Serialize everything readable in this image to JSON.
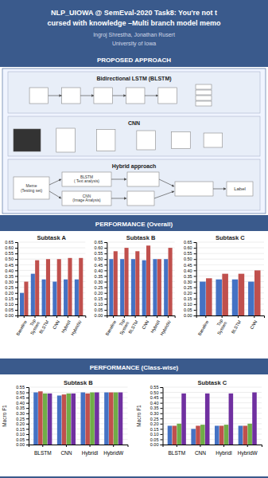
{
  "title": [
    "NLP_UIOWA @ SemEval-2020 Task8: You're not t",
    "cursed with knowledge –Multi branch model memo"
  ],
  "subtitle": [
    "Ingroj Shrestha, Jonathan Rusert",
    "University of Iowa"
  ],
  "annotations": [
    "PROPOSED APPROACH",
    "Bidirectional LSTM (BLSTM)",
    "CNN",
    "Hybrid approach",
    "Meme\n(Testing set)",
    "BLSTM\n( Text analysis)",
    "CNN\n(Image Analysis)",
    "Label",
    "PERFORMANCE (Overall)",
    "PERFORMANCE (Class-wise)"
  ],
  "chart_data": [
    {
      "type": "bar",
      "title": "Subtask A",
      "categories": [
        "Baseline",
        "Top\nSystem",
        "BLSTM",
        "CNN",
        "HybridI",
        "HybridW"
      ],
      "series": [
        {
          "color": "#4472c4",
          "values": [
            0.2,
            0.37,
            0.32,
            0.3,
            0.32,
            0.32
          ]
        },
        {
          "color": "#c0504d",
          "values": [
            0.3,
            0.49,
            0.5,
            0.5,
            0.51,
            0.51
          ]
        }
      ],
      "ylim": [
        0,
        0.65
      ],
      "yticks": [
        {
          "value": 0,
          "label": "0.00"
        },
        0.05,
        {
          "value": 0.1,
          "label": "0.10"
        },
        0.15,
        {
          "value": 0.2,
          "label": "0.20"
        },
        0.25,
        {
          "value": 0.3,
          "label": "0.30"
        },
        0.35,
        {
          "value": 0.4,
          "label": "0.40"
        },
        0.45,
        {
          "value": 0.5,
          "label": "0.50"
        },
        0.55,
        {
          "value": 0.6,
          "label": "0.60"
        },
        0.65
      ],
      "grid": true
    },
    {
      "type": "bar",
      "title": "Subtask B",
      "categories": [
        "Baseline",
        "Top\nSystem",
        "BLSTM",
        "CNN",
        "HybridI",
        "HybridW"
      ],
      "series": [
        {
          "color": "#4472c4",
          "values": [
            0.5,
            0.5,
            0.5,
            0.49,
            0.5,
            0.5
          ]
        },
        {
          "color": "#c0504d",
          "values": [
            0.57,
            0.6,
            0.57,
            0.62,
            0.5,
            0.6
          ]
        }
      ],
      "ylim": [
        0,
        0.65
      ],
      "yticks": [
        {
          "value": 0,
          "label": "0.00"
        },
        0.05,
        {
          "value": 0.1,
          "label": "0.10"
        },
        0.15,
        {
          "value": 0.2,
          "label": "0.20"
        },
        0.25,
        {
          "value": 0.3,
          "label": "0.30"
        },
        0.35,
        {
          "value": 0.4,
          "label": "0.40"
        },
        0.45,
        {
          "value": 0.5,
          "label": "0.50"
        },
        0.55,
        {
          "value": 0.6,
          "label": "0.60"
        },
        0.65
      ],
      "grid": true
    },
    {
      "type": "bar",
      "title": "Subtask C",
      "categories": [
        "Baseline",
        "Top\nSystem",
        "BLSTM",
        "CNN"
      ],
      "series": [
        {
          "color": "#4472c4",
          "values": [
            0.3,
            0.32,
            0.32,
            0.3
          ]
        },
        {
          "color": "#c0504d",
          "values": [
            0.33,
            0.37,
            0.37,
            0.4
          ]
        }
      ],
      "ylim": [
        0,
        0.65
      ],
      "yticks": [
        {
          "value": 0,
          "label": "0.00"
        },
        0.05,
        {
          "value": 0.1,
          "label": "0.10"
        },
        0.15,
        {
          "value": 0.2,
          "label": "0.20"
        },
        0.25,
        {
          "value": 0.3,
          "label": "0.30"
        },
        0.35,
        {
          "value": 0.4,
          "label": "0.40"
        },
        0.45,
        {
          "value": 0.5,
          "label": "0.50"
        },
        0.55,
        {
          "value": 0.6,
          "label": "0.60"
        },
        0.65
      ],
      "grid": true
    },
    {
      "type": "bar",
      "title": "Subtask B",
      "y_label": "Macro F1",
      "categories": [
        "BLSTM",
        "CNN",
        "HybridI",
        "HybridW"
      ],
      "series": [
        {
          "color": "#4472c4",
          "values": [
            0.5,
            0.47,
            0.5,
            0.5
          ]
        },
        {
          "color": "#c0504d",
          "values": [
            0.51,
            0.48,
            0.49,
            0.5
          ]
        },
        {
          "color": "#70ad47",
          "values": [
            0.49,
            0.49,
            0.5,
            0.5
          ]
        },
        {
          "color": "#7030a0",
          "values": [
            0.49,
            0.49,
            0.5,
            0.5
          ]
        }
      ],
      "ylim": [
        0,
        0.55
      ],
      "yticks": [
        {
          "value": 0,
          "label": "0.00"
        },
        0.05,
        {
          "value": 0.1,
          "label": "0.10"
        },
        0.15,
        {
          "value": 0.2,
          "label": "0.20"
        },
        0.25,
        {
          "value": 0.3,
          "label": "0.30"
        },
        0.35,
        {
          "value": 0.4,
          "label": "0.40"
        },
        0.45,
        {
          "value": 0.5,
          "label": "0.50"
        },
        0.55
      ],
      "grid": true
    },
    {
      "type": "bar",
      "title": "Subtask C",
      "y_label": "Macro F1",
      "categories": [
        "BLSTM",
        "CNN",
        "HybridI",
        "HybridW"
      ],
      "series": [
        {
          "color": "#4472c4",
          "values": [
            0.18,
            0.15,
            0.18,
            0.18
          ]
        },
        {
          "color": "#c0504d",
          "values": [
            0.18,
            0.18,
            0.18,
            0.18
          ]
        },
        {
          "color": "#70ad47",
          "values": [
            0.2,
            0.19,
            0.19,
            0.2
          ]
        },
        {
          "color": "#7030a0",
          "values": [
            0.49,
            0.49,
            0.49,
            0.5
          ]
        }
      ],
      "ylim": [
        0,
        0.55
      ],
      "yticks": [
        {
          "value": 0,
          "label": "0.00"
        },
        0.05,
        {
          "value": 0.1,
          "label": "0.10"
        },
        0.15,
        {
          "value": 0.2,
          "label": "0.20"
        },
        0.25,
        {
          "value": 0.3,
          "label": "0.30"
        },
        0.35,
        {
          "value": 0.4,
          "label": "0.40"
        },
        0.45,
        {
          "value": 0.5,
          "label": "0.50"
        },
        0.55
      ],
      "grid": true
    }
  ]
}
